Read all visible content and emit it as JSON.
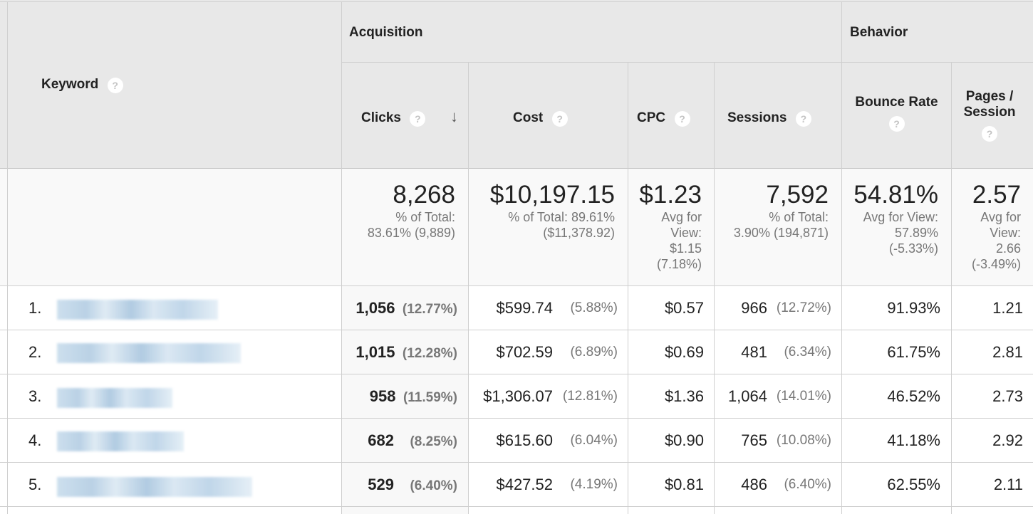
{
  "header": {
    "keyword": "Keyword",
    "group_acquisition": "Acquisition",
    "group_behavior": "Behavior",
    "clicks": "Clicks",
    "cost": "Cost",
    "cpc": "CPC",
    "sessions": "Sessions",
    "bounce_rate": "Bounce Rate",
    "pages_session_1": "Pages /",
    "pages_session_2": "Session",
    "help_glyph": "?",
    "sort_glyph": "↓"
  },
  "totals": {
    "clicks": {
      "value": "8,268",
      "l1": "% of Total:",
      "l2": "83.61% (9,889)"
    },
    "cost": {
      "value": "$10,197.15",
      "l1": "% of Total: 89.61%",
      "l2": "($11,378.92)"
    },
    "cpc": {
      "value": "$1.23",
      "l1": "Avg for",
      "l2": "View:",
      "l3": "$1.15",
      "l4": "(7.18%)"
    },
    "sessions": {
      "value": "7,592",
      "l1": "% of Total:",
      "l2": "3.90% (194,871)"
    },
    "bounce": {
      "value": "54.81%",
      "l1": "Avg for View:",
      "l2": "57.89%",
      "l3": "(-5.33%)"
    },
    "pages": {
      "value": "2.57",
      "l1": "Avg for",
      "l2": "View:",
      "l3": "2.66",
      "l4": "(-3.49%)"
    }
  },
  "rows": [
    {
      "index": "1.",
      "clicks": "1,056",
      "clicks_pct": "(12.77%)",
      "cost": "$599.74",
      "cost_pct": "(5.88%)",
      "cpc": "$0.57",
      "sessions": "966",
      "sessions_pct": "(12.72%)",
      "bounce": "91.93%",
      "pages": "1.21"
    },
    {
      "index": "2.",
      "clicks": "1,015",
      "clicks_pct": "(12.28%)",
      "cost": "$702.59",
      "cost_pct": "(6.89%)",
      "cpc": "$0.69",
      "sessions": "481",
      "sessions_pct": "(6.34%)",
      "bounce": "61.75%",
      "pages": "2.81"
    },
    {
      "index": "3.",
      "clicks": "958",
      "clicks_pct": "(11.59%)",
      "cost": "$1,306.07",
      "cost_pct": "(12.81%)",
      "cpc": "$1.36",
      "sessions": "1,064",
      "sessions_pct": "(14.01%)",
      "bounce": "46.52%",
      "pages": "2.73"
    },
    {
      "index": "4.",
      "clicks": "682",
      "clicks_pct": "(8.25%)",
      "cost": "$615.60",
      "cost_pct": "(6.04%)",
      "cpc": "$0.90",
      "sessions": "765",
      "sessions_pct": "(10.08%)",
      "bounce": "41.18%",
      "pages": "2.92"
    },
    {
      "index": "5.",
      "clicks": "529",
      "clicks_pct": "(6.40%)",
      "cost": "$427.52",
      "cost_pct": "(4.19%)",
      "cpc": "$0.81",
      "sessions": "486",
      "sessions_pct": "(6.40%)",
      "bounce": "62.55%",
      "pages": "2.11"
    }
  ],
  "colors": {
    "header_bg": "#e8e8e8",
    "totals_bg": "#f9f9f9",
    "grid": "#cfcfcf",
    "keyword_link": "#1a73b8"
  }
}
